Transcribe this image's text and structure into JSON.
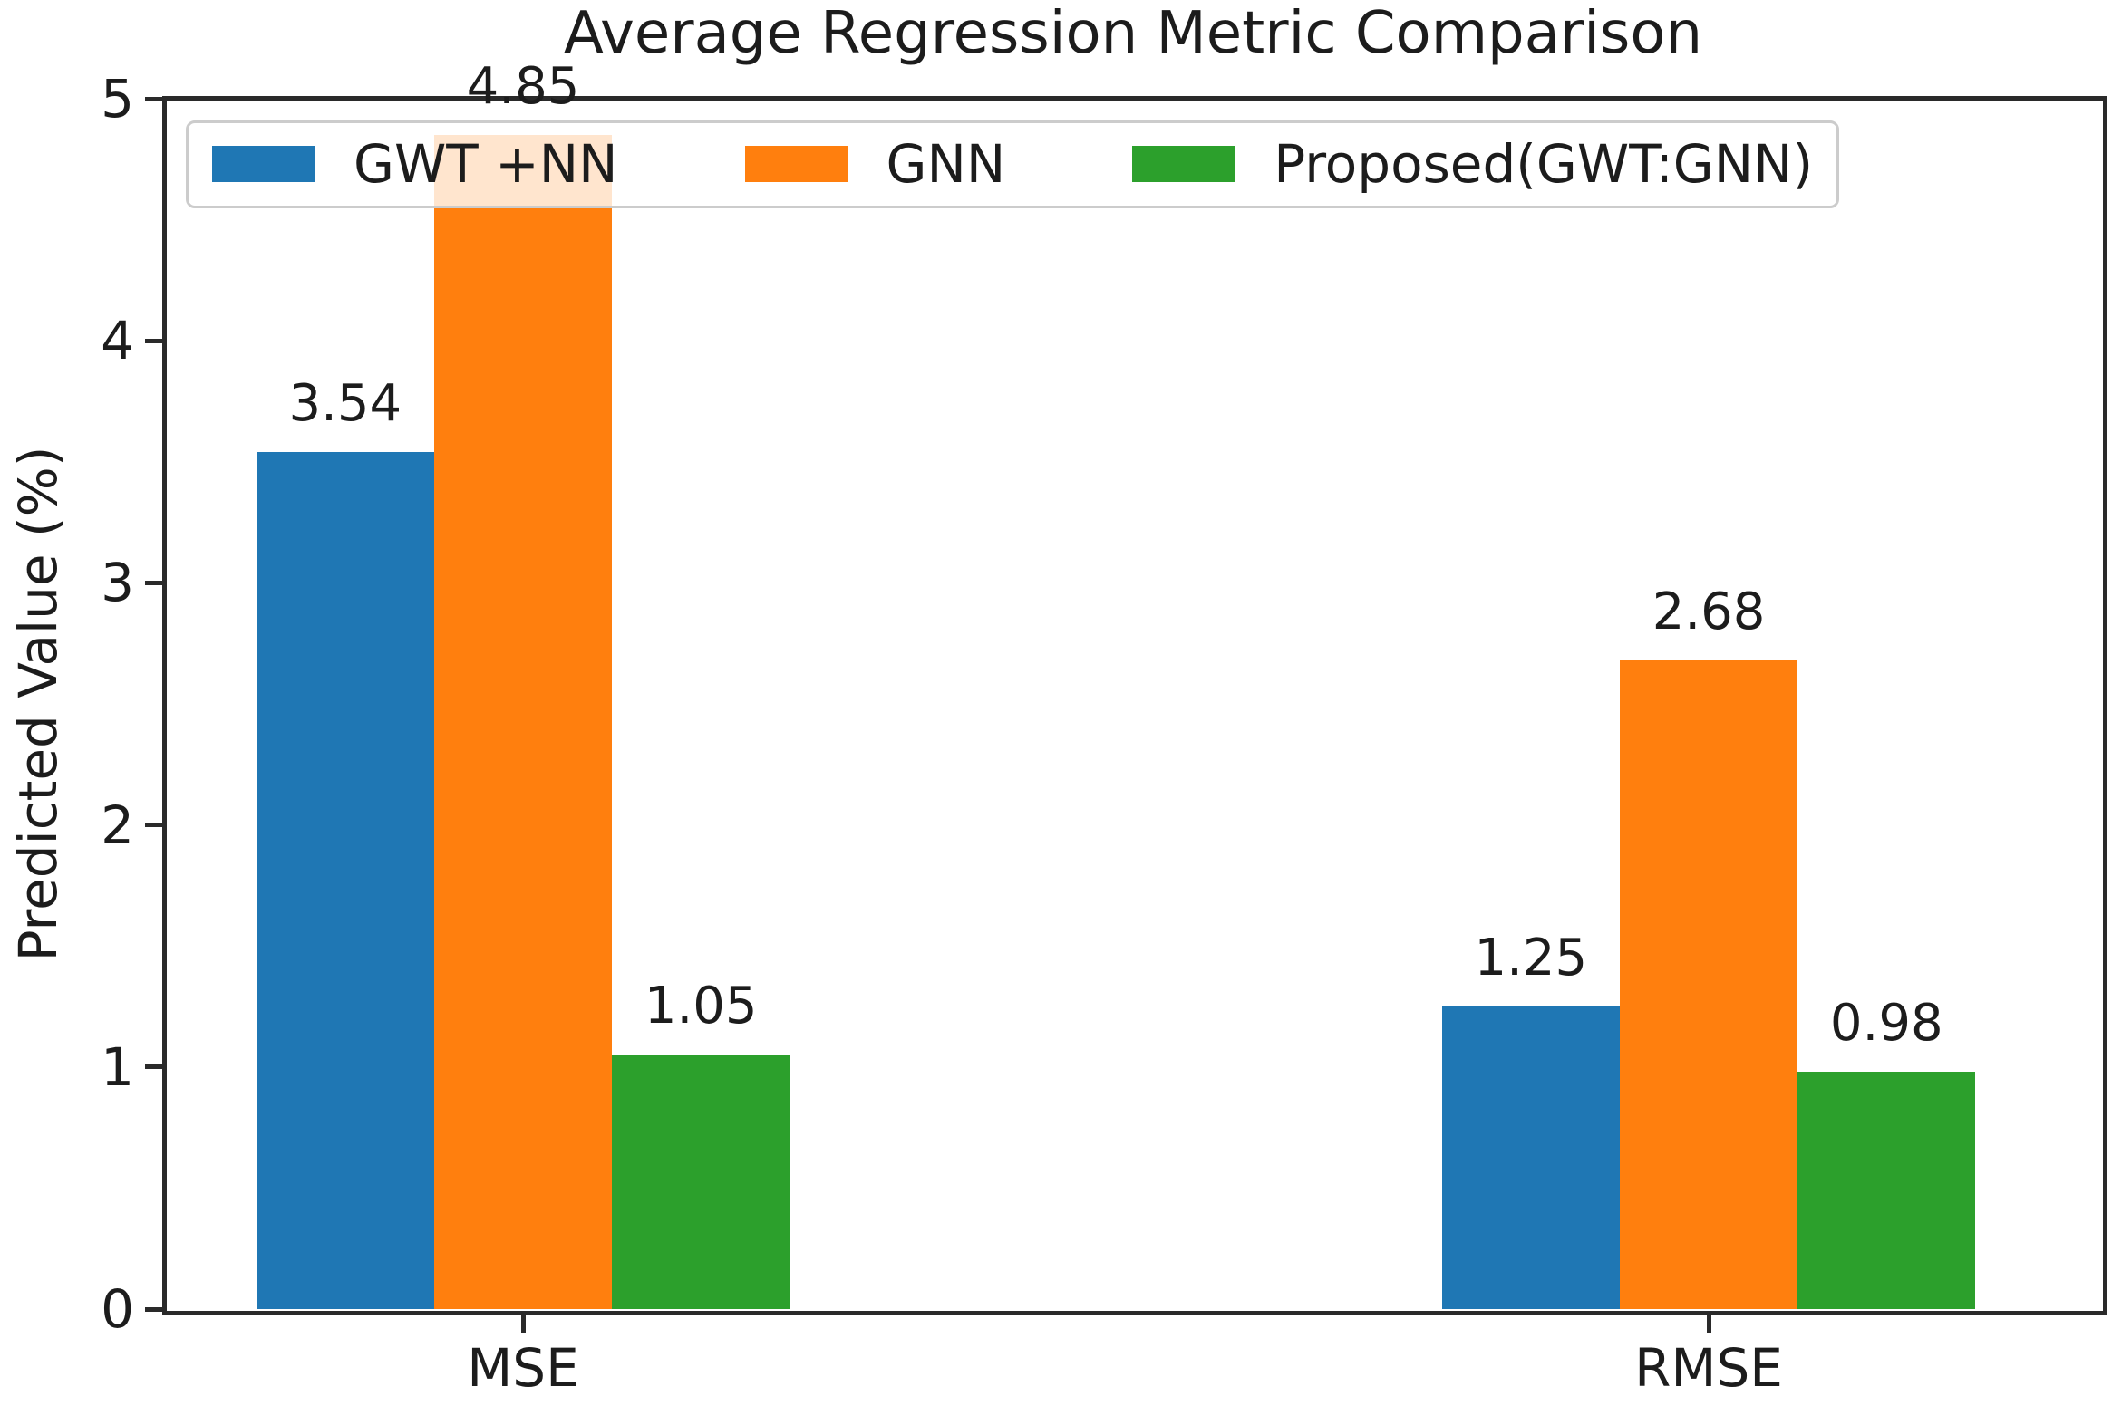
{
  "figure": {
    "background": "#ffffff"
  },
  "chart_data": {
    "type": "bar",
    "title": "Average Regression Metric Comparison",
    "xlabel": "",
    "ylabel": "Predicted Value (%)",
    "categories": [
      "MSE",
      "RMSE"
    ],
    "series": [
      {
        "name": "GWT +NN",
        "color": "#1f77b4",
        "values": [
          3.54,
          1.25
        ]
      },
      {
        "name": "GNN",
        "color": "#ff7f0e",
        "values": [
          4.85,
          2.68
        ]
      },
      {
        "name": "Proposed(GWT:GNN)",
        "color": "#2ca02c",
        "values": [
          1.05,
          0.98
        ]
      }
    ],
    "bar_value_labels": [
      [
        "3.54",
        "1.25"
      ],
      [
        "4.85",
        "2.68"
      ],
      [
        "1.05",
        "0.98"
      ]
    ],
    "y_ticks": [
      0,
      1,
      2,
      3,
      4,
      5
    ],
    "ylim": [
      0,
      5
    ],
    "grid": false,
    "legend": {
      "position": "upper left",
      "orientation": "horizontal"
    },
    "colors": {
      "axis": "#2a2a2a",
      "text": "#1c1c1c",
      "legend_border": "#cccccc"
    }
  }
}
